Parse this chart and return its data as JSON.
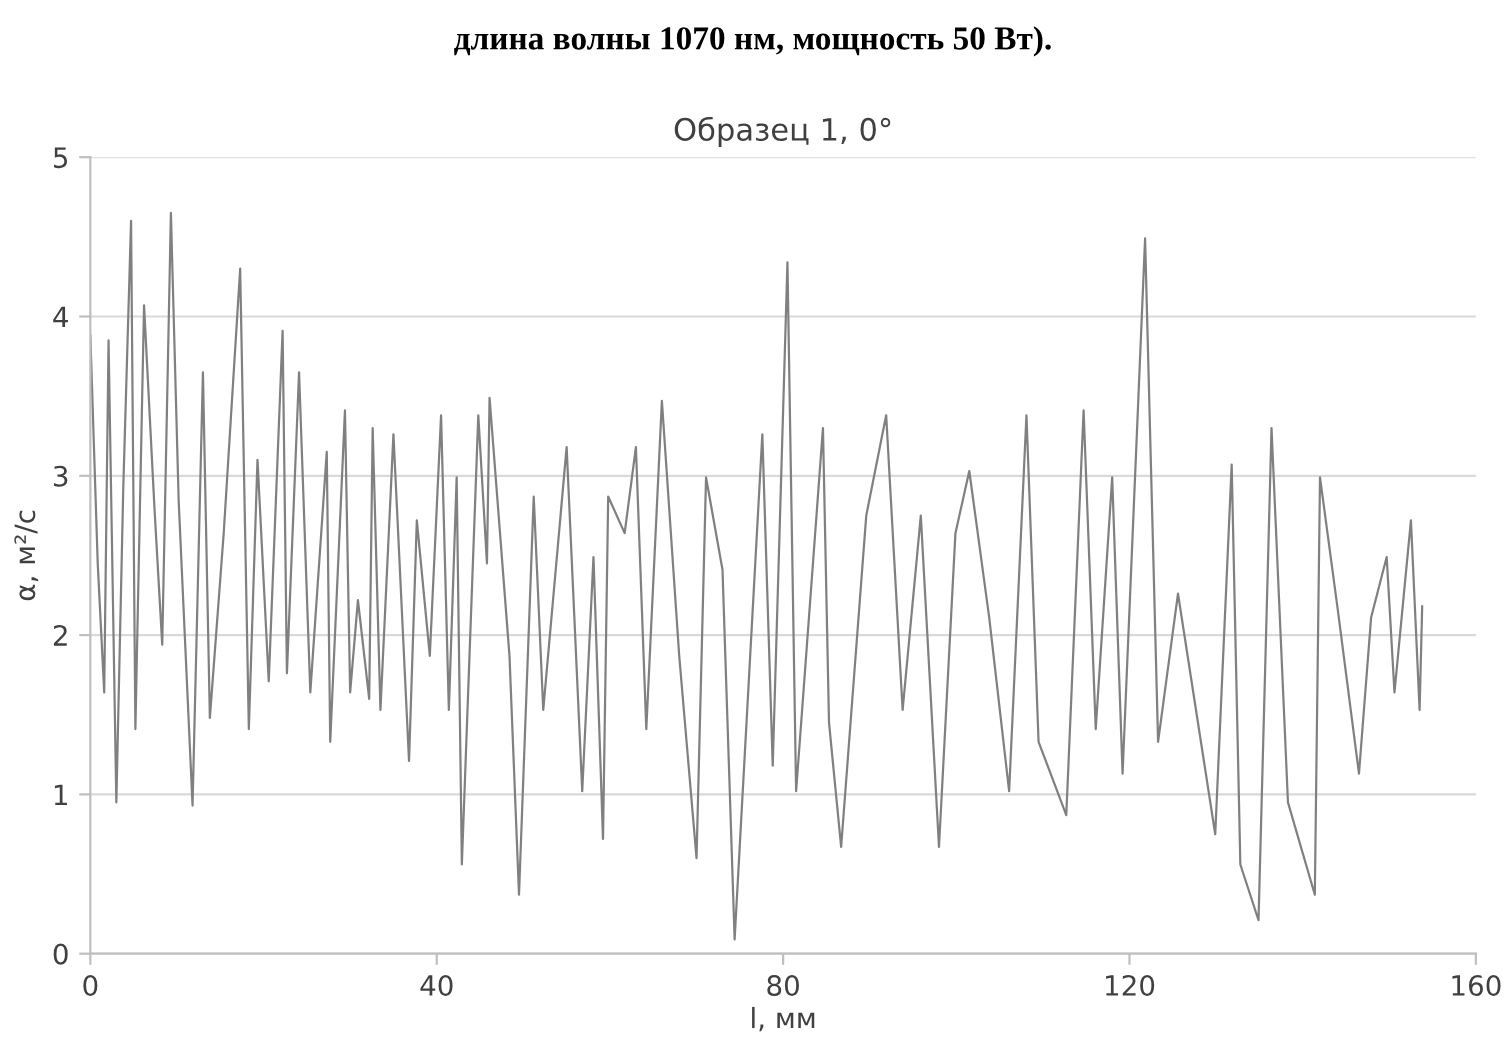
{
  "chart_data": {
    "type": "line",
    "title": "Образец 1, 0°",
    "annotations": [
      "длина волны 1070 нм, мощность 50 Вт)."
    ],
    "xlabel": "l, мм",
    "ylabel": "α, м²/с",
    "xlim": [
      0,
      160
    ],
    "xticks": [
      0,
      40,
      80,
      120,
      160
    ],
    "ylim": [
      0,
      5
    ],
    "yticks": [
      0,
      1,
      2,
      3,
      4,
      5
    ],
    "grid": "y",
    "legend": false,
    "marker": "none",
    "line_style": "solid",
    "series": [
      {
        "color": "#808080",
        "x": [
          0,
          0.85,
          1.6,
          2.1,
          3.0,
          3.8,
          4.7,
          5.2,
          6.2,
          7.4,
          8.3,
          9.3,
          10.2,
          11.8,
          13.0,
          13.8,
          15.4,
          17.3,
          18.3,
          19.3,
          20.6,
          22.2,
          22.7,
          24.1,
          25.4,
          27.3,
          27.7,
          29.4,
          30.0,
          30.9,
          32.2,
          32.6,
          33.5,
          35.0,
          36.8,
          37.7,
          39.2,
          40.5,
          41.4,
          42.3,
          42.9,
          44.8,
          45.8,
          46.1,
          48.4,
          49.5,
          51.2,
          52.3,
          55.0,
          56.8,
          58.1,
          59.2,
          59.8,
          61.7,
          63.0,
          64.2,
          66.0,
          68.0,
          70.0,
          71.1,
          73.0,
          74.4,
          77.6,
          78.8,
          80.5,
          81.5,
          84.6,
          85.3,
          86.7,
          89.6,
          91.9,
          93.8,
          95.9,
          98.0,
          99.9,
          101.5,
          103.8,
          106.1,
          108.1,
          109.5,
          112.7,
          114.7,
          116.1,
          118.0,
          119.2,
          121.8,
          123.3,
          125.6,
          129.9,
          131.8,
          132.8,
          134.9,
          136.4,
          138.3,
          141.4,
          142.0,
          144.1,
          146.5,
          147.9,
          149.7,
          150.6,
          152.5,
          153.5,
          153.8
        ],
        "values": [
          3.88,
          2.45,
          1.64,
          3.85,
          0.95,
          2.92,
          4.6,
          1.41,
          4.07,
          2.8,
          1.94,
          4.65,
          2.84,
          0.93,
          3.65,
          1.48,
          2.64,
          4.3,
          1.41,
          3.1,
          1.71,
          3.91,
          1.76,
          3.65,
          1.64,
          3.15,
          1.33,
          3.41,
          1.64,
          2.22,
          1.6,
          3.3,
          1.53,
          3.26,
          1.21,
          2.72,
          1.87,
          3.38,
          1.53,
          2.99,
          0.56,
          3.38,
          2.45,
          3.49,
          1.87,
          0.37,
          2.87,
          1.53,
          3.18,
          1.02,
          2.49,
          0.72,
          2.87,
          2.64,
          3.18,
          1.41,
          3.47,
          1.87,
          0.6,
          2.99,
          2.41,
          0.09,
          3.26,
          1.18,
          4.34,
          1.02,
          3.3,
          1.45,
          0.67,
          2.75,
          3.38,
          1.53,
          2.75,
          0.67,
          2.64,
          3.03,
          2.11,
          1.02,
          3.38,
          1.33,
          0.87,
          3.41,
          1.41,
          2.99,
          1.13,
          4.49,
          1.33,
          2.26,
          0.75,
          3.07,
          0.56,
          0.21,
          3.3,
          0.95,
          0.37,
          2.99,
          2.14,
          1.13,
          2.11,
          2.49,
          1.64,
          2.72,
          1.53,
          2.18
        ]
      }
    ]
  }
}
